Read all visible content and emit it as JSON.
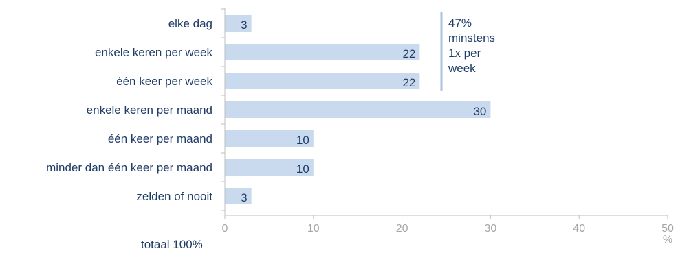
{
  "colors": {
    "bar": "#c9d9ee",
    "text": "#1f3b66",
    "axis": "#bfbfbf",
    "tick_text": "#a6a6a6",
    "bracket": "#a9c1e2"
  },
  "chart_data": {
    "type": "bar",
    "orientation": "horizontal",
    "categories": [
      "elke dag",
      "enkele keren per week",
      "één keer per week",
      "enkele keren per maand",
      "één keer per maand",
      "minder dan één keer per maand",
      "zelden of nooit"
    ],
    "values": [
      3,
      22,
      22,
      30,
      10,
      10,
      3
    ],
    "data_labels": [
      "3",
      "22",
      "22",
      "30",
      "10",
      "10",
      "3"
    ],
    "xlim": [
      0,
      50
    ],
    "xticks": [
      0,
      10,
      20,
      30,
      40,
      50
    ],
    "xtick_labels": [
      "0",
      "10",
      "20",
      "30",
      "40",
      "50"
    ],
    "unit": "%",
    "grid": false,
    "annotation": {
      "lines": [
        "47%",
        "minstens",
        "1x per",
        "week"
      ],
      "categories_spanned": [
        "elke dag",
        "enkele keren per week",
        "één keer per week"
      ]
    },
    "footer": "totaal 100%"
  }
}
